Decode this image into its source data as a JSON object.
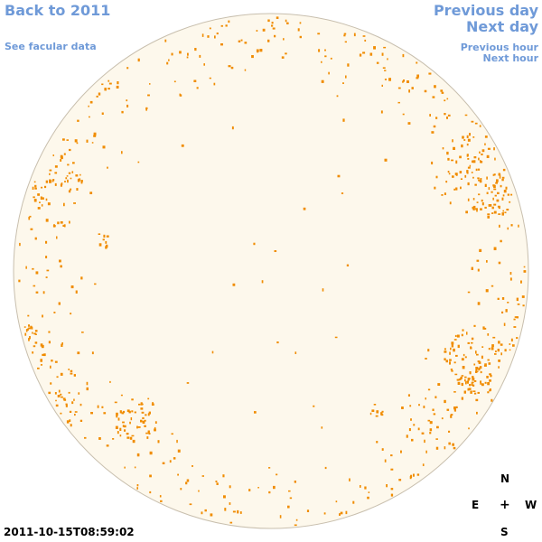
{
  "nav": {
    "back_label": "Back to 2011",
    "facular_label": "See facular data",
    "prev_day_label": "Previous day",
    "next_day_label": "Next day",
    "prev_hour_label": "Previous hour",
    "next_hour_label": "Next hour"
  },
  "compass": {
    "north": "N",
    "south": "S",
    "east": "E",
    "west": "W",
    "center": "+"
  },
  "timestamp": "2011-10-15T08:59:02",
  "colors": {
    "disk_fill": "#fdf8ec",
    "disk_stroke": "#c8bfae",
    "facula": "#f08c00",
    "link": "#6f9ad8"
  }
}
